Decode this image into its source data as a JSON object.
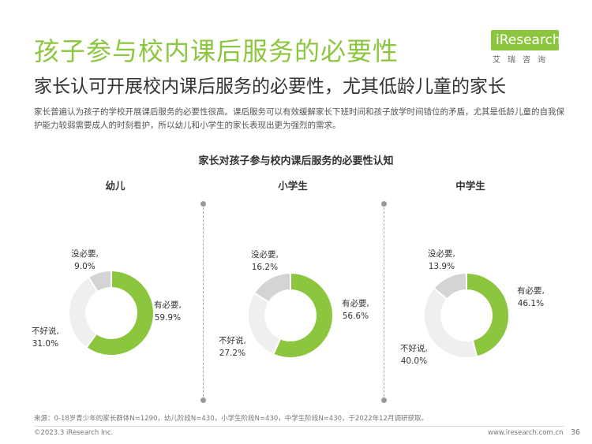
{
  "header": {
    "title": "孩子参与校内课后服务的必要性",
    "subtitle": "家长认可开展校内课后服务的必要性，尤其低龄儿童的家长",
    "description": "家长普遍认为孩子的学校开展课后服务的必要性很高。课后服务可以有效缓解家长下班时间和孩子放学时间错位的矛盾，尤其是低龄儿童的自我保护能力较弱需要成人的时刻看护，所以幼儿和小学生的家长表现出更为强烈的需求。"
  },
  "logo": {
    "text": "iResearch",
    "cn": "艾瑞咨询"
  },
  "colors": {
    "necessary": "#8cc63f",
    "not_necessary": "#d4d4d4",
    "hard_to_say": "#efefef",
    "accent": "#8cc63f"
  },
  "chart_data": {
    "type": "pie",
    "title": "家长对孩子参与校内课后服务的必要性认知",
    "series_labels": [
      "有必要,",
      "没必要,",
      "不好说,"
    ],
    "panels": [
      {
        "name": "幼儿",
        "values": [
          59.9,
          9.0,
          31.0
        ],
        "value_labels": [
          "59.9%",
          "9.0%",
          "31.0%"
        ]
      },
      {
        "name": "小学生",
        "values": [
          56.6,
          16.2,
          27.2
        ],
        "value_labels": [
          "56.6%",
          "16.2%",
          "27.2%"
        ]
      },
      {
        "name": "中学生",
        "values": [
          46.1,
          13.9,
          40.0
        ],
        "value_labels": [
          "46.1%",
          "13.9%",
          "40.0%"
        ]
      }
    ]
  },
  "footer": {
    "source": "来源：0-18岁青少年的家长群体N=1290，幼儿阶段N=430，小学生阶段N=430，中学生阶段N=430，于2022年12月调研获取。",
    "copyright": "©2023.3 iResearch Inc.",
    "website": "www.iresearch.com.cn",
    "page": "36"
  }
}
